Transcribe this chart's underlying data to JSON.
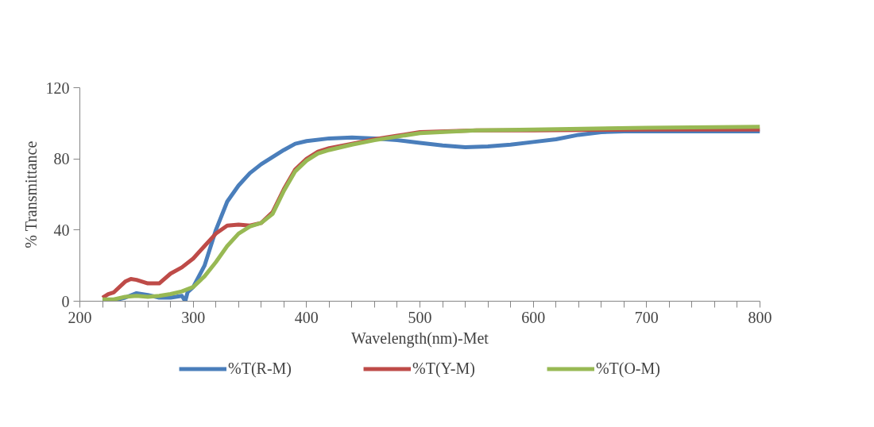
{
  "chart_data": {
    "type": "line",
    "xlabel": "Wavelength(nm)-Met",
    "ylabel": "% Transmittance",
    "xlim": [
      200,
      800
    ],
    "ylim": [
      0,
      120
    ],
    "xticks": [
      200,
      {
        "value": 220,
        "label": null
      },
      {
        "value": 240,
        "label": null
      },
      {
        "value": 260,
        "label": null
      },
      {
        "value": 280,
        "label": null
      },
      300,
      {
        "value": 320,
        "label": null
      },
      {
        "value": 340,
        "label": null
      },
      {
        "value": 360,
        "label": null
      },
      {
        "value": 380,
        "label": null
      },
      400,
      {
        "value": 420,
        "label": null
      },
      {
        "value": 440,
        "label": null
      },
      {
        "value": 460,
        "label": null
      },
      {
        "value": 480,
        "label": null
      },
      500,
      {
        "value": 520,
        "label": null
      },
      {
        "value": 540,
        "label": null
      },
      {
        "value": 560,
        "label": null
      },
      {
        "value": 580,
        "label": null
      },
      600,
      {
        "value": 620,
        "label": null
      },
      {
        "value": 640,
        "label": null
      },
      {
        "value": 660,
        "label": null
      },
      {
        "value": 680,
        "label": null
      },
      700,
      {
        "value": 720,
        "label": null
      },
      {
        "value": 740,
        "label": null
      },
      {
        "value": 760,
        "label": null
      },
      {
        "value": 780,
        "label": null
      },
      800
    ],
    "yticks": [
      0,
      40,
      80,
      120
    ],
    "grid": false,
    "legend": "bottom",
    "marker": "none",
    "line_style": "solid",
    "series": [
      {
        "name": "%T(R-M)",
        "color": "#4a7ebb",
        "x": [
          220,
          230,
          240,
          250,
          260,
          270,
          280,
          290,
          293,
          295,
          300,
          310,
          320,
          330,
          340,
          350,
          360,
          370,
          380,
          390,
          400,
          420,
          440,
          460,
          480,
          500,
          520,
          540,
          560,
          580,
          600,
          620,
          640,
          660,
          680,
          700,
          800
        ],
        "values": [
          0,
          0.5,
          2,
          4.5,
          3.5,
          2,
          2,
          3,
          0,
          5,
          8,
          20,
          40,
          56,
          65,
          72,
          77,
          81,
          85,
          88.5,
          90,
          91.5,
          92,
          91.5,
          90.5,
          89,
          87.5,
          86.5,
          87,
          88,
          89.5,
          91,
          93.5,
          95,
          95.5,
          95.5,
          95.5
        ]
      },
      {
        "name": "%T(Y-M)",
        "color": "#be4b48",
        "x": [
          220,
          225,
          230,
          240,
          245,
          250,
          260,
          270,
          280,
          290,
          300,
          310,
          320,
          330,
          340,
          350,
          360,
          370,
          380,
          390,
          400,
          410,
          420,
          440,
          460,
          480,
          500,
          550,
          600,
          700,
          800
        ],
        "values": [
          2,
          4,
          5,
          11,
          12.5,
          12,
          10,
          10,
          15.5,
          19,
          24,
          31,
          38,
          42.5,
          43,
          42.5,
          44,
          50,
          63,
          74,
          80,
          84,
          86,
          88.5,
          91,
          93,
          95,
          96,
          96,
          96.5,
          96.5
        ]
      },
      {
        "name": "%T(O-M)",
        "color": "#98b954",
        "x": [
          220,
          230,
          240,
          250,
          260,
          270,
          280,
          290,
          300,
          310,
          320,
          330,
          340,
          350,
          360,
          370,
          380,
          390,
          400,
          410,
          420,
          440,
          460,
          480,
          500,
          550,
          600,
          700,
          800
        ],
        "values": [
          1,
          1,
          2.5,
          3,
          2.5,
          3,
          4,
          5.5,
          8,
          14,
          22,
          31,
          38,
          42,
          44,
          49,
          62,
          73,
          79,
          83,
          85,
          88,
          90.5,
          92.5,
          94.5,
          96,
          96.5,
          97.5,
          98
        ]
      }
    ]
  }
}
